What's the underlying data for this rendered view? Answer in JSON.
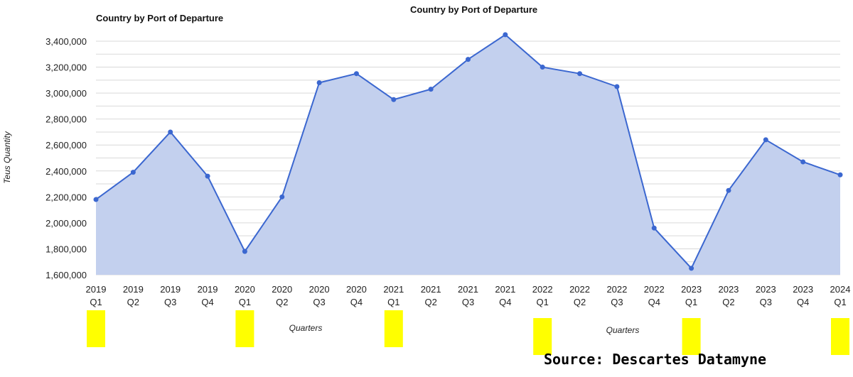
{
  "chart_data": {
    "type": "area",
    "title_left": "Country by Port of Departure",
    "title_right": "Country by Port of Departure",
    "ylabel": "Teus Quantity",
    "xlabel": "Quarters",
    "ylim": [
      1600000,
      3400000
    ],
    "y_ticks": [
      "3,400,000",
      "3,200,000",
      "3,000,000",
      "2,800,000",
      "2,600,000",
      "2,400,000",
      "2,200,000",
      "2,000,000",
      "1,800,000",
      "1,600,000"
    ],
    "grid": true,
    "legend": "none",
    "colors": {
      "line": "#3b67d0",
      "fill": "#c3d0ee",
      "grid": "#d9d9d9",
      "highlight": "#ffff00"
    },
    "categories": [
      {
        "year": "2019",
        "q": "Q1"
      },
      {
        "year": "2019",
        "q": "Q2"
      },
      {
        "year": "2019",
        "q": "Q3"
      },
      {
        "year": "2019",
        "q": "Q4"
      },
      {
        "year": "2020",
        "q": "Q1"
      },
      {
        "year": "2020",
        "q": "Q2"
      },
      {
        "year": "2020",
        "q": "Q3"
      },
      {
        "year": "2020",
        "q": "Q4"
      },
      {
        "year": "2021",
        "q": "Q1"
      },
      {
        "year": "2021",
        "q": "Q2"
      },
      {
        "year": "2021",
        "q": "Q3"
      },
      {
        "year": "2021",
        "q": "Q4"
      },
      {
        "year": "2022",
        "q": "Q1"
      },
      {
        "year": "2022",
        "q": "Q2"
      },
      {
        "year": "2022",
        "q": "Q3"
      },
      {
        "year": "2022",
        "q": "Q4"
      },
      {
        "year": "2023",
        "q": "Q1"
      },
      {
        "year": "2023",
        "q": "Q2"
      },
      {
        "year": "2023",
        "q": "Q3"
      },
      {
        "year": "2023",
        "q": "Q4"
      },
      {
        "year": "2024",
        "q": "Q1"
      }
    ],
    "values": [
      2180000,
      2390000,
      2700000,
      2360000,
      1780000,
      2200000,
      3080000,
      3150000,
      2950000,
      3030000,
      3260000,
      3450000,
      3200000,
      3150000,
      3050000,
      1960000,
      1650000,
      2250000,
      2640000,
      2470000,
      2370000
    ],
    "highlighted_categories": [
      "2019 Q1",
      "2020 Q1",
      "2021 Q1",
      "2022 Q1",
      "2023 Q1",
      "2024 Q1"
    ]
  },
  "source": "Source: Descartes Datamyne"
}
